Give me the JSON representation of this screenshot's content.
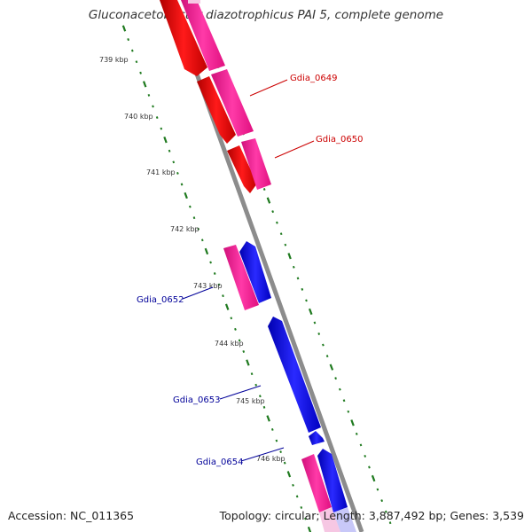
{
  "title": "Gluconacetobacter diazotrophicus PAI 5, complete genome",
  "accession_text": "Accession: NC_011365",
  "summary_text": "Topology: circular; Length: 3,887,492 bp; Genes: 3,539",
  "colors": {
    "backbone": "#8c8c8c",
    "tick": "#1f7a1f",
    "gene_forward": "#ee0000",
    "gene_reverse": "#0000ee",
    "cds_pink": "#ff1493",
    "label_forward": "#cc0000",
    "label_reverse": "#000099",
    "faded_blue": "#c8c8f8"
  },
  "ticks": [
    {
      "label": "739 kbp"
    },
    {
      "label": "740 kbp"
    },
    {
      "label": "741 kbp"
    },
    {
      "label": "742 kbp"
    },
    {
      "label": "743 kbp"
    },
    {
      "label": "744 kbp"
    },
    {
      "label": "745 kbp"
    },
    {
      "label": "746 kbp"
    }
  ],
  "gene_labels": [
    {
      "name": "Gdia_0649",
      "strand": "forward"
    },
    {
      "name": "Gdia_0650",
      "strand": "forward"
    },
    {
      "name": "Gdia_0652",
      "strand": "reverse"
    },
    {
      "name": "Gdia_0653",
      "strand": "reverse"
    },
    {
      "name": "Gdia_0654",
      "strand": "reverse"
    }
  ]
}
